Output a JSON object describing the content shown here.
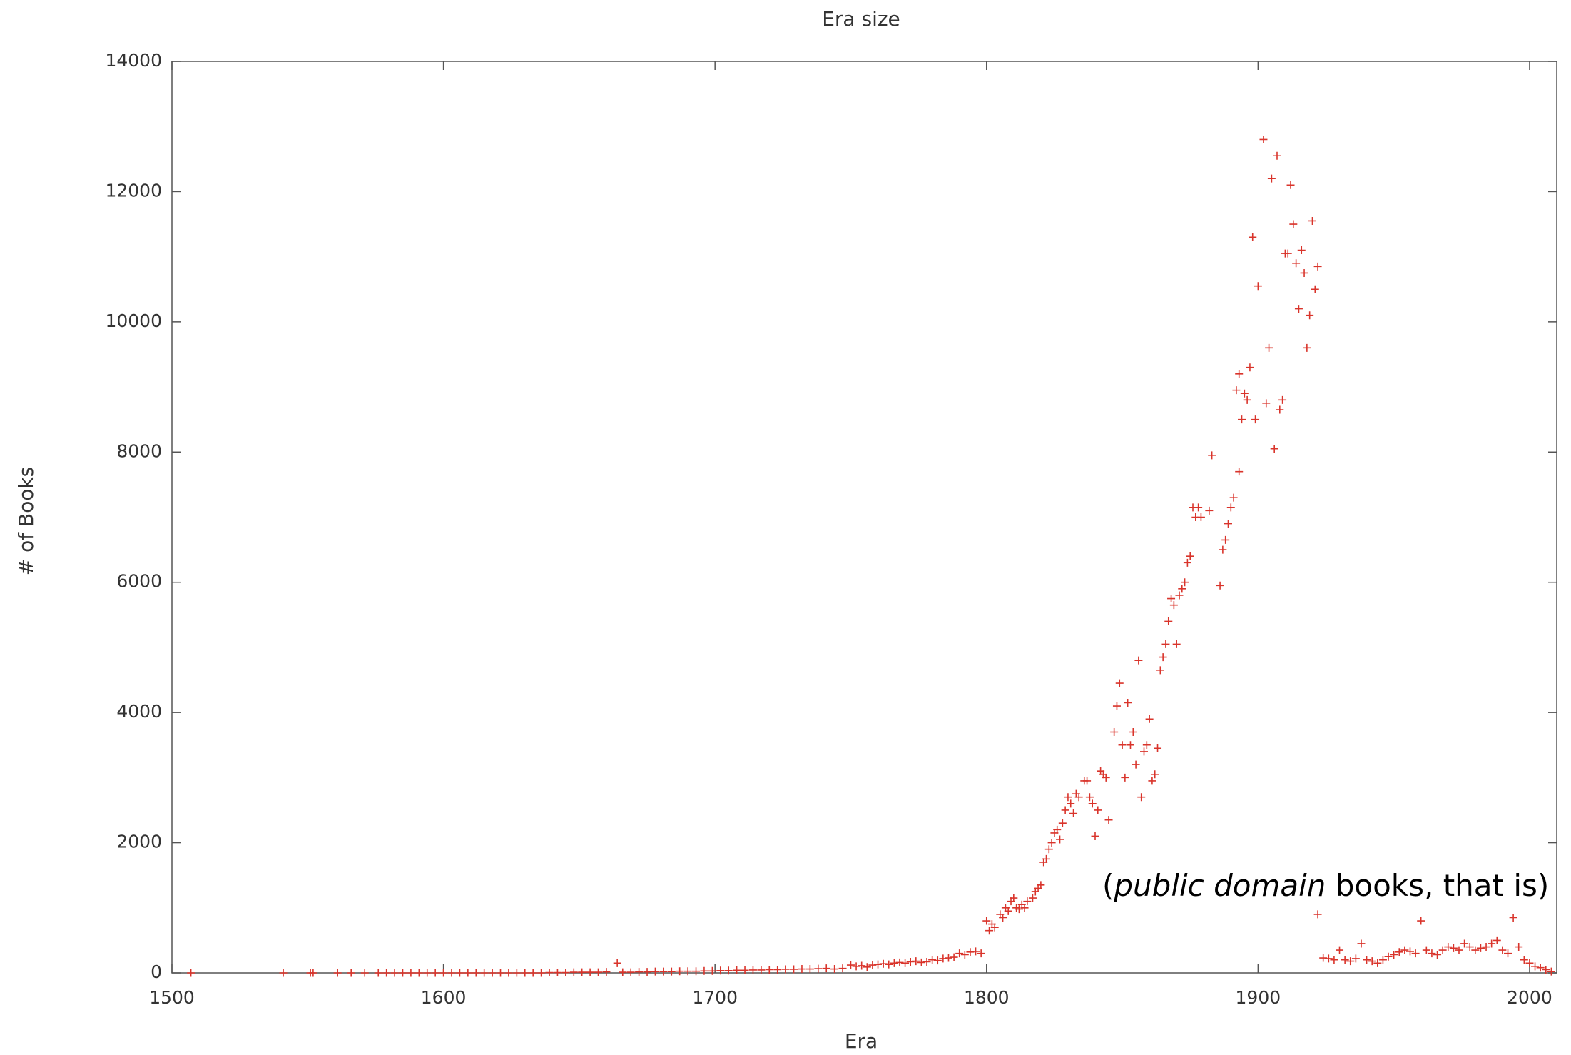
{
  "chart_data": {
    "type": "scatter",
    "title": "Era size",
    "x_label": "Era",
    "y_label": "# of Books",
    "annotation": [
      "(",
      "public domain",
      " books, that is)"
    ],
    "color": "#d9342b",
    "marker": "+",
    "xlim": [
      1500,
      2010
    ],
    "ylim": [
      0,
      14000
    ],
    "xticks": [
      1500,
      1600,
      1700,
      1800,
      1900,
      2000
    ],
    "yticks": [
      0,
      2000,
      4000,
      6000,
      8000,
      10000,
      12000,
      14000
    ],
    "x": [
      1507,
      1541,
      1551,
      1552,
      1561,
      1566,
      1571,
      1576,
      1579,
      1582,
      1585,
      1588,
      1591,
      1594,
      1597,
      1600,
      1603,
      1606,
      1609,
      1612,
      1615,
      1618,
      1621,
      1624,
      1627,
      1630,
      1633,
      1636,
      1639,
      1642,
      1645,
      1648,
      1651,
      1654,
      1657,
      1660,
      1664,
      1666,
      1669,
      1672,
      1675,
      1678,
      1681,
      1684,
      1687,
      1690,
      1693,
      1696,
      1699,
      1702,
      1705,
      1708,
      1711,
      1714,
      1717,
      1720,
      1723,
      1726,
      1729,
      1732,
      1735,
      1738,
      1741,
      1744,
      1747,
      1750,
      1752,
      1754,
      1756,
      1758,
      1760,
      1762,
      1764,
      1766,
      1768,
      1770,
      1772,
      1774,
      1776,
      1778,
      1780,
      1782,
      1784,
      1786,
      1788,
      1790,
      1792,
      1794,
      1796,
      1798,
      1800,
      1801,
      1802,
      1803,
      1805,
      1806,
      1807,
      1808,
      1809,
      1810,
      1811,
      1812,
      1813,
      1814,
      1815,
      1817,
      1818,
      1819,
      1820,
      1821,
      1822,
      1823,
      1824,
      1825,
      1826,
      1827,
      1828,
      1829,
      1830,
      1831,
      1832,
      1833,
      1834,
      1836,
      1837,
      1838,
      1839,
      1840,
      1841,
      1842,
      1843,
      1844,
      1845,
      1847,
      1848,
      1849,
      1850,
      1851,
      1852,
      1853,
      1854,
      1855,
      1856,
      1857,
      1858,
      1859,
      1860,
      1861,
      1862,
      1863,
      1864,
      1865,
      1866,
      1867,
      1868,
      1869,
      1870,
      1871,
      1872,
      1873,
      1874,
      1875,
      1876,
      1877,
      1878,
      1879,
      1882,
      1883,
      1886,
      1887,
      1888,
      1889,
      1890,
      1891,
      1892,
      1893,
      1893,
      1894,
      1895,
      1896,
      1897,
      1898,
      1899,
      1900,
      1902,
      1903,
      1904,
      1905,
      1906,
      1907,
      1908,
      1909,
      1910,
      1911,
      1912,
      1913,
      1914,
      1915,
      1916,
      1917,
      1918,
      1919,
      1920,
      1921,
      1922,
      1922,
      1924,
      1926,
      1928,
      1930,
      1932,
      1934,
      1936,
      1938,
      1940,
      1942,
      1944,
      1946,
      1948,
      1950,
      1952,
      1954,
      1956,
      1958,
      1960,
      1962,
      1964,
      1966,
      1968,
      1970,
      1972,
      1974,
      1976,
      1978,
      1980,
      1982,
      1984,
      1986,
      1988,
      1990,
      1992,
      1994,
      1996,
      1998,
      2000,
      2002,
      2004,
      2006,
      2008
    ],
    "values": [
      0,
      0,
      0,
      0,
      0,
      0,
      0,
      0,
      0,
      0,
      0,
      0,
      0,
      0,
      0,
      0,
      0,
      0,
      0,
      0,
      0,
      0,
      0,
      0,
      0,
      0,
      0,
      0,
      5,
      5,
      5,
      10,
      10,
      10,
      10,
      15,
      150,
      10,
      10,
      15,
      15,
      20,
      20,
      20,
      25,
      25,
      25,
      30,
      30,
      35,
      35,
      40,
      40,
      45,
      45,
      50,
      50,
      55,
      55,
      60,
      60,
      65,
      70,
      60,
      70,
      120,
      100,
      110,
      90,
      120,
      130,
      140,
      130,
      150,
      160,
      150,
      170,
      180,
      160,
      170,
      200,
      190,
      220,
      230,
      240,
      300,
      280,
      320,
      330,
      300,
      800,
      650,
      750,
      700,
      900,
      850,
      1000,
      950,
      1100,
      1150,
      1000,
      980,
      1050,
      1000,
      1100,
      1150,
      1250,
      1300,
      1350,
      1700,
      1750,
      1900,
      2000,
      2150,
      2200,
      2050,
      2300,
      2500,
      2700,
      2600,
      2450,
      2750,
      2700,
      2950,
      2950,
      2700,
      2600,
      2100,
      2500,
      3100,
      3050,
      3000,
      2350,
      3700,
      4100,
      4450,
      3500,
      3000,
      4150,
      3500,
      3700,
      3200,
      4800,
      2700,
      3400,
      3500,
      3900,
      2950,
      3050,
      3450,
      4650,
      4850,
      5050,
      5400,
      5750,
      5650,
      5050,
      5800,
      5900,
      6000,
      6300,
      6400,
      7150,
      7000,
      7150,
      7000,
      7100,
      7950,
      5950,
      6500,
      6650,
      6900,
      7150,
      7300,
      8950,
      9200,
      7700,
      8500,
      8900,
      8800,
      9300,
      11300,
      8500,
      10550,
      12800,
      8750,
      9600,
      12200,
      8050,
      12550,
      8650,
      8800,
      11050,
      11050,
      12100,
      11500,
      10900,
      10200,
      11100,
      10750,
      9600,
      10100,
      11550,
      10500,
      10850,
      900,
      230,
      220,
      200,
      350,
      200,
      180,
      220,
      450,
      200,
      180,
      150,
      200,
      250,
      280,
      320,
      350,
      330,
      300,
      800,
      350,
      300,
      280,
      350,
      400,
      380,
      350,
      450,
      400,
      350,
      380,
      400,
      450,
      500,
      350,
      300,
      850,
      400,
      200,
      150,
      100,
      80,
      50,
      20
    ]
  }
}
